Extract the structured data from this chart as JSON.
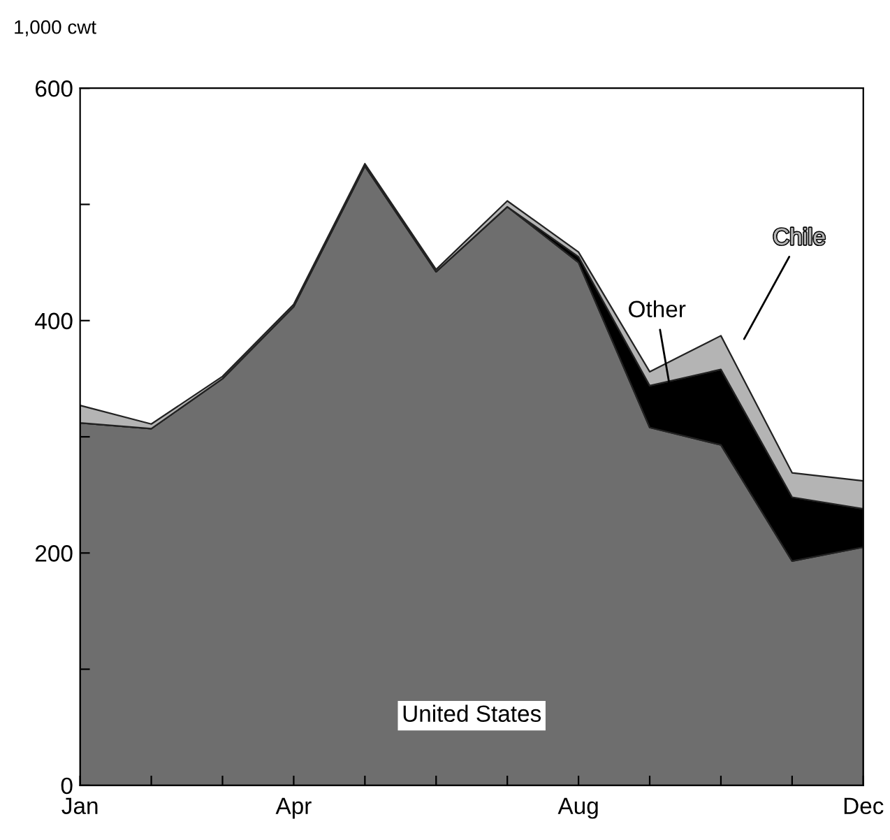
{
  "chart_data": {
    "type": "area",
    "stacked": true,
    "ylabel": "1,000 cwt",
    "categories": [
      "Jan",
      null,
      null,
      "Apr",
      null,
      null,
      null,
      "Aug",
      null,
      null,
      null,
      "Dec"
    ],
    "series": [
      {
        "name": "United States",
        "color": "#6e6e6e",
        "values": [
          312,
          307,
          350,
          412,
          533,
          442,
          498,
          450,
          308,
          293,
          193,
          205
        ]
      },
      {
        "name": "Other",
        "color": "#000000",
        "values": [
          0,
          0,
          0,
          0,
          0,
          0,
          0,
          5,
          36,
          65,
          55,
          33
        ]
      },
      {
        "name": "Chile",
        "color": "#b4b4b4",
        "values": [
          15,
          4,
          2,
          2,
          2,
          2,
          5,
          4,
          12,
          29,
          21,
          24
        ]
      }
    ],
    "ylim": [
      0,
      600
    ],
    "yticks": [
      0,
      {
        "value": 100,
        "label": null
      },
      200,
      {
        "value": 300,
        "label": null
      },
      400,
      {
        "value": 500,
        "label": null
      },
      600
    ],
    "grid": false,
    "legend": false
  }
}
